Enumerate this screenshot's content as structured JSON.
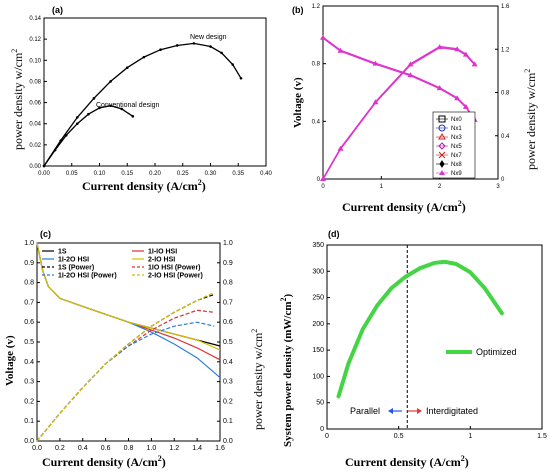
{
  "chart_data": [
    {
      "panel": "(a)",
      "type": "line",
      "xlabel": "Current density (A/cm",
      "xlabel_sup": "2",
      "xlabel_end": ")",
      "ylabel": "power density w/cm",
      "ylabel_sup": "2",
      "xlim": [
        0,
        0.4
      ],
      "ylim": [
        0,
        0.14
      ],
      "x_ticks": [
        "0.00",
        "0.05",
        "0.10",
        "0.15",
        "0.20",
        "0.25",
        "0.30",
        "0.35",
        "0.40"
      ],
      "y_ticks": [
        "0.00",
        "0.02",
        "0.04",
        "0.06",
        "0.08",
        "0.10",
        "0.12",
        "0.14"
      ],
      "annotations": [
        "New design",
        "Conventional design"
      ],
      "series": [
        {
          "label_ref": 0,
          "color": "#000000",
          "points": [
            [
              0.0,
              0.0
            ],
            [
              0.03,
              0.024
            ],
            [
              0.06,
              0.046
            ],
            [
              0.09,
              0.064
            ],
            [
              0.12,
              0.08
            ],
            [
              0.15,
              0.093
            ],
            [
              0.18,
              0.103
            ],
            [
              0.21,
              0.11
            ],
            [
              0.24,
              0.114
            ],
            [
              0.27,
              0.116
            ],
            [
              0.3,
              0.113
            ],
            [
              0.32,
              0.107
            ],
            [
              0.34,
              0.096
            ],
            [
              0.355,
              0.083
            ]
          ]
        },
        {
          "label_ref": 1,
          "color": "#000000",
          "points": [
            [
              0.0,
              0.0
            ],
            [
              0.02,
              0.015
            ],
            [
              0.04,
              0.029
            ],
            [
              0.06,
              0.04
            ],
            [
              0.08,
              0.049
            ],
            [
              0.1,
              0.055
            ],
            [
              0.12,
              0.057
            ],
            [
              0.14,
              0.054
            ],
            [
              0.16,
              0.047
            ]
          ]
        }
      ]
    },
    {
      "panel": "(b)",
      "type": "line",
      "xlabel": "Current density (A/cm",
      "xlabel_sup": "2",
      "xlabel_end": ")",
      "ylabel": "Voltage (v)",
      "y2label": "power density w/cm",
      "y2label_sup": "2",
      "xlim": [
        0,
        3
      ],
      "ylim": [
        0,
        1.2
      ],
      "y2lim": [
        0,
        1.6
      ],
      "x_ticks": [
        "0",
        "1",
        "2",
        "3"
      ],
      "y_ticks": [
        "0",
        "0.4",
        "0.8",
        "1.2"
      ],
      "y2_ticks": [
        "0",
        "0.4",
        "0.8",
        "1.2",
        "1.6"
      ],
      "legend": [
        "Nx0",
        "Nx1",
        "Nx3",
        "Nx5",
        "Nx7",
        "Nx8",
        "Nx9"
      ],
      "legend_markers": [
        "square",
        "circle",
        "triangle",
        "diamond",
        "x",
        "diamond-half",
        "triangle-filled"
      ],
      "color": "#dd33cc",
      "voltage": [
        [
          0.0,
          0.98
        ],
        [
          0.3,
          0.89
        ],
        [
          0.9,
          0.8
        ],
        [
          1.5,
          0.72
        ],
        [
          2.0,
          0.63
        ],
        [
          2.3,
          0.56
        ],
        [
          2.45,
          0.5
        ],
        [
          2.6,
          0.41
        ]
      ],
      "power": [
        [
          0.0,
          0.0
        ],
        [
          0.3,
          0.28
        ],
        [
          0.9,
          0.71
        ],
        [
          1.5,
          1.06
        ],
        [
          2.0,
          1.22
        ],
        [
          2.3,
          1.2
        ],
        [
          2.45,
          1.15
        ],
        [
          2.6,
          1.06
        ]
      ]
    },
    {
      "panel": "(c)",
      "type": "line",
      "xlabel": "Current density (A/cm",
      "xlabel_sup": "2",
      "xlabel_end": ")",
      "ylabel": "Voltage (v)",
      "y2label": "power density w/cm",
      "y2label_sup": "2",
      "xlim": [
        0,
        1.6
      ],
      "ylim": [
        0,
        1.0
      ],
      "y2lim": [
        0,
        1.0
      ],
      "x_ticks": [
        "0.0",
        "0.2",
        "0.4",
        "0.6",
        "0.8",
        "1.0",
        "1.2",
        "1.4",
        "1.6"
      ],
      "y_ticks": [
        "0.0",
        "0.1",
        "0.2",
        "0.3",
        "0.4",
        "0.5",
        "0.6",
        "0.7",
        "0.8",
        "0.9",
        "1.0"
      ],
      "y2_ticks": [
        "0.0",
        "0.1",
        "0.2",
        "0.3",
        "0.4",
        "0.5",
        "0.6",
        "0.7",
        "0.8",
        "0.9",
        "1.0"
      ],
      "legend": [
        "1S",
        "1I-IO HSI",
        "1I-2O HSI",
        "2-IO HSI",
        "1S (Power)",
        "1IO HSI (Power)",
        "1I-2O HSI (Power)",
        "2-IO HSI (Power)"
      ],
      "legend_colors": [
        "#000000",
        "#e03030",
        "#2a7de1",
        "#d6c000",
        "#000000",
        "#e03030",
        "#2a7de1",
        "#d6c000"
      ],
      "legend_dash": [
        false,
        false,
        false,
        false,
        true,
        true,
        true,
        true
      ],
      "voltage": [
        {
          "name_ref": 0,
          "color": "#000000",
          "points": [
            [
              0,
              1.0
            ],
            [
              0.05,
              0.86
            ],
            [
              0.1,
              0.78
            ],
            [
              0.2,
              0.72
            ],
            [
              0.4,
              0.68
            ],
            [
              0.6,
              0.64
            ],
            [
              0.8,
              0.6
            ],
            [
              1.0,
              0.57
            ],
            [
              1.2,
              0.54
            ],
            [
              1.4,
              0.51
            ],
            [
              1.6,
              0.48
            ]
          ]
        },
        {
          "name_ref": 1,
          "color": "#e03030",
          "points": [
            [
              0,
              1.0
            ],
            [
              0.05,
              0.86
            ],
            [
              0.1,
              0.78
            ],
            [
              0.2,
              0.72
            ],
            [
              0.4,
              0.68
            ],
            [
              0.6,
              0.64
            ],
            [
              0.8,
              0.6
            ],
            [
              1.0,
              0.56
            ],
            [
              1.2,
              0.52
            ],
            [
              1.4,
              0.47
            ],
            [
              1.6,
              0.41
            ]
          ]
        },
        {
          "name_ref": 2,
          "color": "#2a7de1",
          "points": [
            [
              0,
              1.0
            ],
            [
              0.05,
              0.86
            ],
            [
              0.1,
              0.78
            ],
            [
              0.2,
              0.72
            ],
            [
              0.4,
              0.68
            ],
            [
              0.6,
              0.64
            ],
            [
              0.8,
              0.6
            ],
            [
              1.0,
              0.55
            ],
            [
              1.2,
              0.49
            ],
            [
              1.4,
              0.42
            ],
            [
              1.6,
              0.32
            ]
          ]
        },
        {
          "name_ref": 3,
          "color": "#d6c000",
          "points": [
            [
              0,
              1.0
            ],
            [
              0.05,
              0.86
            ],
            [
              0.1,
              0.78
            ],
            [
              0.2,
              0.72
            ],
            [
              0.4,
              0.68
            ],
            [
              0.6,
              0.64
            ],
            [
              0.8,
              0.6
            ],
            [
              1.0,
              0.57
            ],
            [
              1.2,
              0.54
            ],
            [
              1.4,
              0.51
            ],
            [
              1.6,
              0.46
            ]
          ]
        }
      ],
      "power": [
        {
          "name_ref": 4,
          "color": "#000000",
          "points": [
            [
              0,
              0.0
            ],
            [
              0.2,
              0.14
            ],
            [
              0.4,
              0.27
            ],
            [
              0.6,
              0.39
            ],
            [
              0.8,
              0.49
            ],
            [
              1.0,
              0.58
            ],
            [
              1.2,
              0.65
            ],
            [
              1.4,
              0.71
            ],
            [
              1.55,
              0.74
            ]
          ]
        },
        {
          "name_ref": 5,
          "color": "#e03030",
          "points": [
            [
              0,
              0.0
            ],
            [
              0.2,
              0.14
            ],
            [
              0.4,
              0.27
            ],
            [
              0.6,
              0.39
            ],
            [
              0.8,
              0.48
            ],
            [
              1.0,
              0.56
            ],
            [
              1.2,
              0.62
            ],
            [
              1.4,
              0.66
            ],
            [
              1.55,
              0.65
            ]
          ]
        },
        {
          "name_ref": 6,
          "color": "#2a7de1",
          "points": [
            [
              0,
              0.0
            ],
            [
              0.2,
              0.14
            ],
            [
              0.4,
              0.27
            ],
            [
              0.6,
              0.39
            ],
            [
              0.8,
              0.48
            ],
            [
              1.0,
              0.54
            ],
            [
              1.2,
              0.58
            ],
            [
              1.4,
              0.6
            ],
            [
              1.55,
              0.58
            ]
          ]
        },
        {
          "name_ref": 7,
          "color": "#d6c000",
          "points": [
            [
              0,
              0.0
            ],
            [
              0.2,
              0.14
            ],
            [
              0.4,
              0.27
            ],
            [
              0.6,
              0.39
            ],
            [
              0.8,
              0.49
            ],
            [
              1.0,
              0.58
            ],
            [
              1.2,
              0.65
            ],
            [
              1.4,
              0.71
            ],
            [
              1.55,
              0.75
            ]
          ]
        }
      ]
    },
    {
      "panel": "(d)",
      "type": "line",
      "xlabel": "Current density (A/cm",
      "xlabel_sup": "2",
      "xlabel_end": ")",
      "ylabel": "System power density (mW/cm",
      "ylabel_sup": "2",
      "ylabel_end": ")",
      "xlim": [
        0,
        1.5
      ],
      "ylim": [
        0,
        350
      ],
      "x_ticks": [
        "0",
        "0.5",
        "1",
        "1.5"
      ],
      "y_ticks": [
        "0",
        "50",
        "100",
        "150",
        "200",
        "250",
        "300",
        "350"
      ],
      "legend": [
        "Optimized"
      ],
      "color": "#44d444",
      "points": [
        [
          0.08,
          62
        ],
        [
          0.15,
          125
        ],
        [
          0.25,
          190
        ],
        [
          0.35,
          235
        ],
        [
          0.45,
          268
        ],
        [
          0.55,
          290
        ],
        [
          0.65,
          306
        ],
        [
          0.75,
          316
        ],
        [
          0.82,
          318
        ],
        [
          0.9,
          314
        ],
        [
          1.0,
          298
        ],
        [
          1.1,
          268
        ],
        [
          1.22,
          220
        ]
      ],
      "divider_x": 0.56,
      "annotations": [
        "Parallel",
        "Interdigitated"
      ],
      "arrow_colors": [
        "#2255ee",
        "#ee3333"
      ]
    }
  ]
}
